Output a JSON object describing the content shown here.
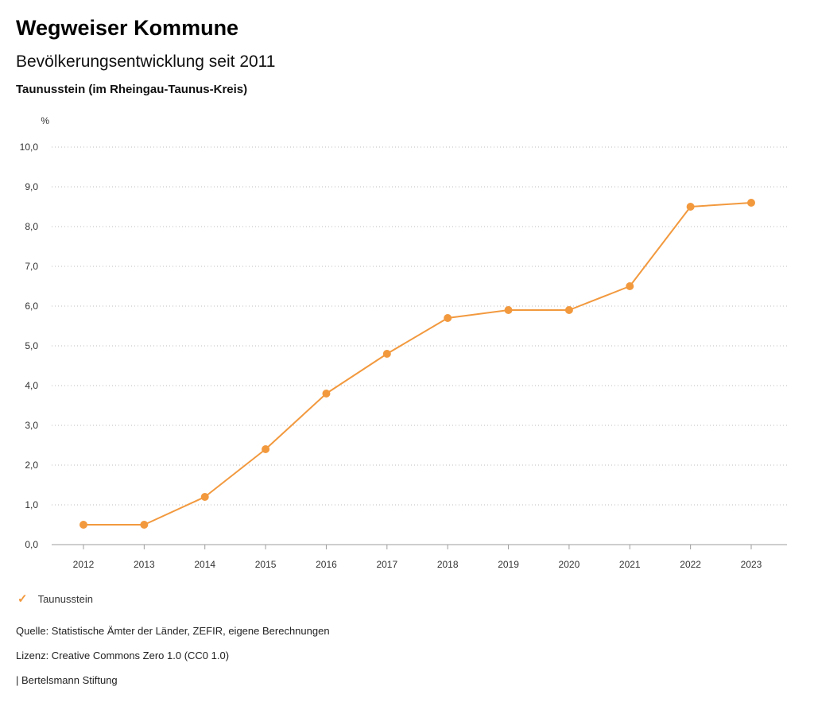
{
  "header": {
    "brand": "Wegweiser Kommune",
    "title": "Bevölkerungsentwicklung seit 2011",
    "subtitle": "Taunusstein (im Rheingau-Taunus-Kreis)"
  },
  "legend": {
    "check_icon": "✓",
    "label": "Taunusstein",
    "color": "#f2993e"
  },
  "footer": {
    "source": "Quelle: Statistische Ämter der Länder, ZEFIR, eigene Berechnungen",
    "license": "Lizenz: Creative Commons Zero 1.0 (CC0 1.0)",
    "attribution": "| Bertelsmann Stiftung"
  },
  "chart_data": {
    "type": "line",
    "title": "Bevölkerungsentwicklung seit 2011",
    "subtitle": "Taunusstein (im Rheingau-Taunus-Kreis)",
    "unit": "%",
    "x": [
      2012,
      2013,
      2014,
      2015,
      2016,
      2017,
      2018,
      2019,
      2020,
      2021,
      2022,
      2023
    ],
    "series": [
      {
        "name": "Taunusstein",
        "values": [
          0.5,
          0.5,
          1.2,
          2.4,
          3.8,
          4.8,
          5.7,
          5.9,
          5.9,
          6.5,
          8.5,
          8.6
        ],
        "color": "#f2993e"
      }
    ],
    "ylim": [
      0,
      10
    ],
    "y_step": 1,
    "y_tick_decimal": "comma",
    "grid": "dotted-horizontal",
    "legend_position": "bottom-left"
  }
}
